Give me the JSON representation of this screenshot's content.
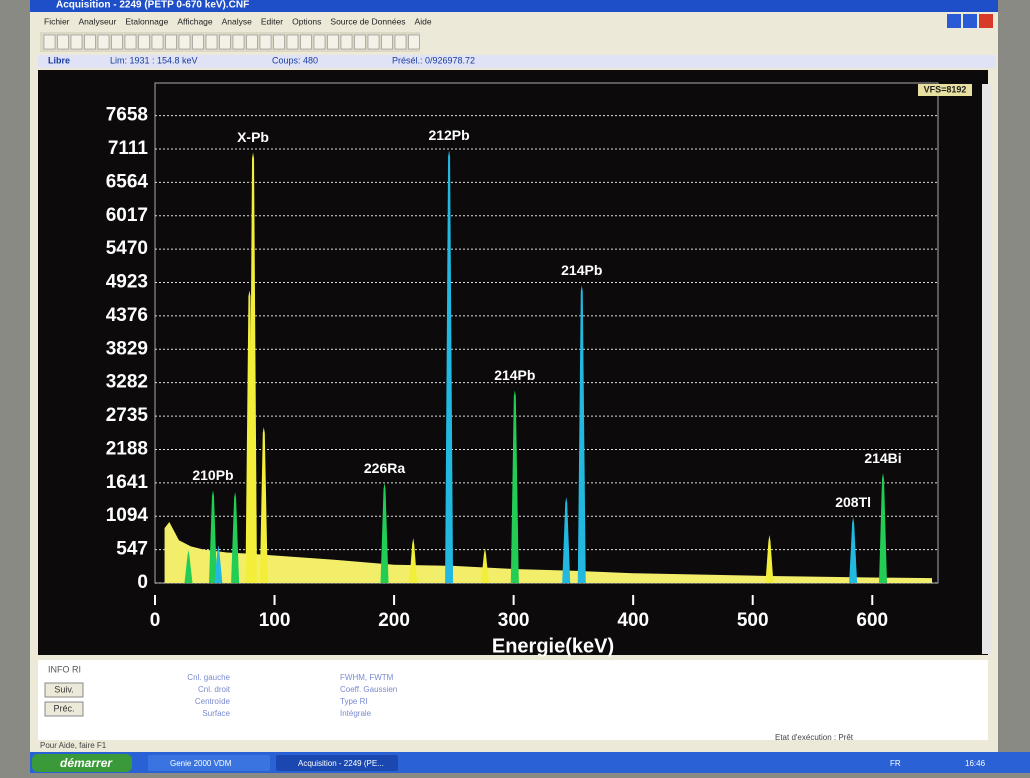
{
  "window": {
    "title": "Acquisition - 2249 (PETP 0-670 keV).CNF",
    "menu": [
      "Fichier",
      "Analyseur",
      "Etalonnage",
      "Affichage",
      "Analyse",
      "Editer",
      "Options",
      "Source de Données",
      "Aide"
    ],
    "status": {
      "mode": "Libre",
      "lim": "Lim:  1931  :   154.8 keV",
      "counts": "Coups:   480",
      "preset": "Présél.:   0/926978.72"
    }
  },
  "chart_data": {
    "type": "spectrum",
    "vfs": "VFS=8192",
    "xlabel": "Energie(keV)",
    "xlim": [
      0,
      655
    ],
    "ylim": [
      0,
      8192
    ],
    "xticks": [
      0,
      100,
      200,
      300,
      400,
      500,
      600
    ],
    "yticks": [
      0,
      547,
      1094,
      1641,
      2188,
      2735,
      3282,
      3829,
      4376,
      4923,
      5470,
      6017,
      6564,
      7111,
      7658
    ],
    "grid": true,
    "background": {
      "color": "#f2ee6a",
      "x": [
        8,
        12,
        20,
        30,
        40,
        60,
        80,
        100,
        150,
        200,
        250,
        300,
        350,
        400,
        500,
        600,
        650
      ],
      "values": [
        900,
        1000,
        700,
        600,
        550,
        500,
        480,
        450,
        380,
        300,
        280,
        230,
        200,
        160,
        120,
        90,
        80
      ]
    },
    "peaks": [
      {
        "x": 28,
        "value": 540,
        "color": "#22cc55"
      },
      {
        "x": 48.5,
        "value": 1522,
        "color": "#22cc55",
        "label": "210Pb"
      },
      {
        "x": 53,
        "value": 620,
        "color": "#22b8e0"
      },
      {
        "x": 67,
        "value": 1490,
        "color": "#22cc55"
      },
      {
        "x": 79,
        "value": 4795,
        "color": "#f2ee3a"
      },
      {
        "x": 82,
        "value": 7054,
        "color": "#f2ee3a",
        "label": "X-Pb"
      },
      {
        "x": 91,
        "value": 2553,
        "color": "#f2ee3a"
      },
      {
        "x": 192,
        "value": 1637,
        "color": "#22cc55",
        "label": "226Ra"
      },
      {
        "x": 216,
        "value": 736,
        "color": "#f2ee3a"
      },
      {
        "x": 246,
        "value": 7087,
        "color": "#22b8e0",
        "label": "212Pb"
      },
      {
        "x": 276,
        "value": 573,
        "color": "#f2ee3a"
      },
      {
        "x": 301,
        "value": 3159,
        "color": "#22cc55",
        "label": "214Pb"
      },
      {
        "x": 344,
        "value": 1407,
        "color": "#22b8e0"
      },
      {
        "x": 357,
        "value": 4877,
        "color": "#22b8e0",
        "label": "214Pb"
      },
      {
        "x": 514,
        "value": 786,
        "color": "#f2ee3a"
      },
      {
        "x": 584,
        "value": 1080,
        "color": "#22b8e0",
        "label": "208Tl"
      },
      {
        "x": 609,
        "value": 1800,
        "color": "#22cc55",
        "label": "214Bi"
      }
    ]
  },
  "info_panel": {
    "title": "INFO RI",
    "buttons": [
      "Suiv.",
      "Préc."
    ],
    "left_labels": [
      "Cnl. gauche",
      "Cnl. droit",
      "Centroïde",
      "Surface"
    ],
    "right_labels": [
      "FWHM, FWTM",
      "Coeff. Gaussien",
      "Type RI",
      "Intégrale"
    ]
  },
  "statusbar": {
    "help": "Pour Aide, faire F1",
    "state": "Etat d'exécution : Prêt"
  },
  "taskbar": {
    "start": "démarrer",
    "tasks": [
      "Genie 2000 VDM",
      "Acquisition - 2249 (PE..."
    ],
    "lang": "FR",
    "clock": "16:46"
  }
}
